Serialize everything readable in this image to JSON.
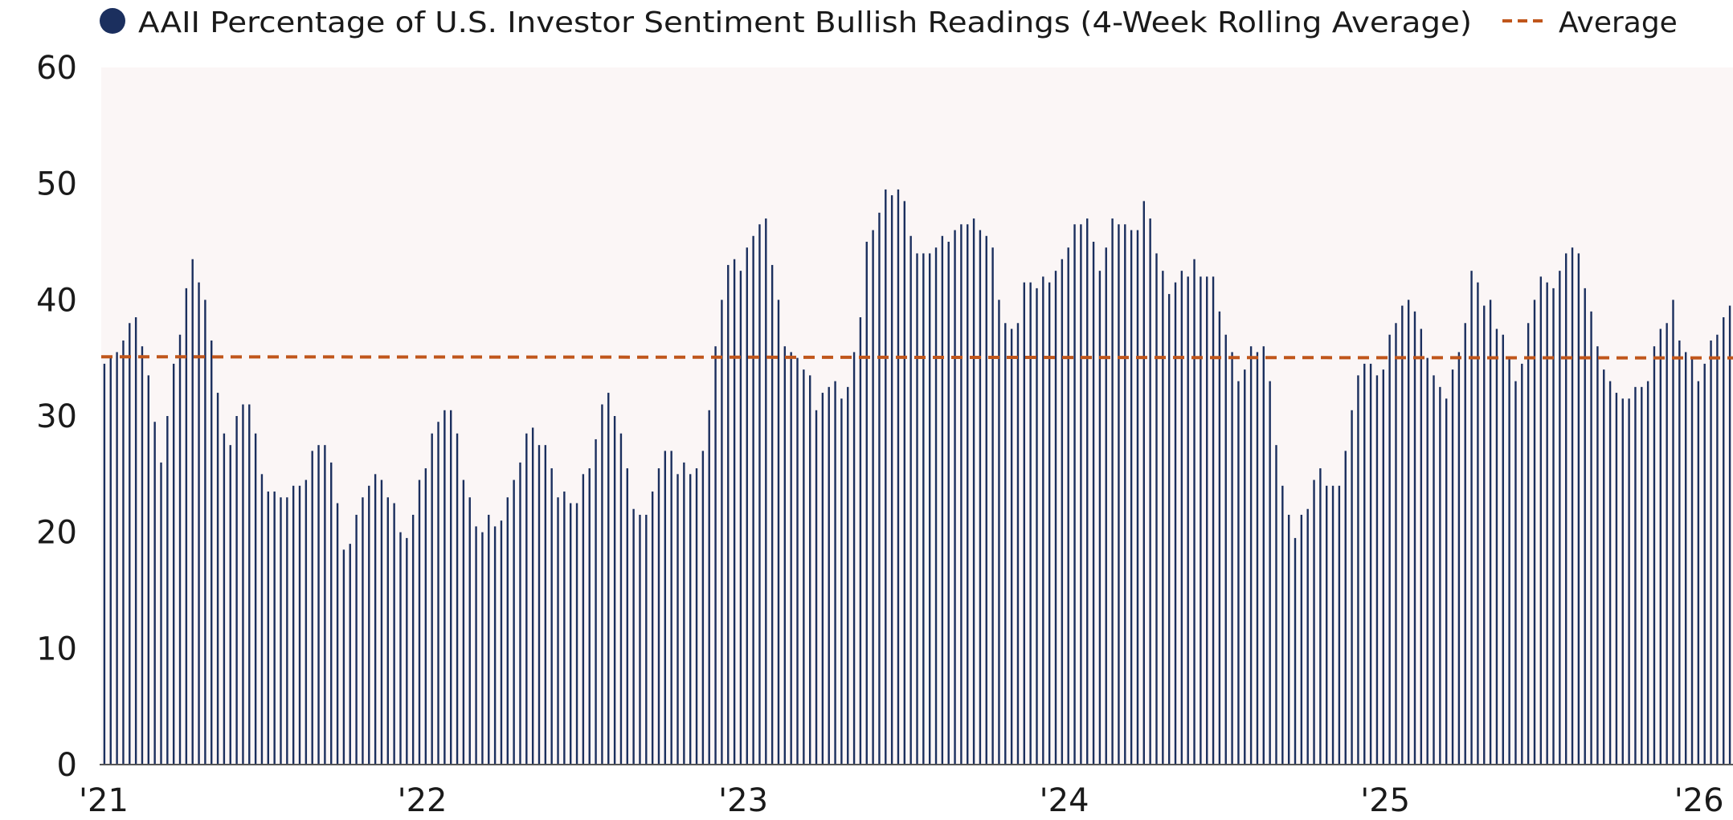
{
  "chart_data": {
    "type": "bar",
    "title": "",
    "xlabel": "",
    "ylabel": "",
    "ylim": [
      0,
      60
    ],
    "xlim": [
      "2021-01",
      "2026-02"
    ],
    "grid": false,
    "legend_position": "top",
    "y_ticks": [
      "0",
      "10",
      "20",
      "30",
      "40",
      "50",
      "60"
    ],
    "x_ticks": [
      {
        "label": "'21",
        "date": "2021-01"
      },
      {
        "label": "'22",
        "date": "2022-01"
      },
      {
        "label": "'23",
        "date": "2023-01"
      },
      {
        "label": "'24",
        "date": "2024-01"
      },
      {
        "label": "'25",
        "date": "2025-01"
      },
      {
        "label": "'26",
        "date": "2026-01"
      }
    ],
    "series": [
      {
        "name": "AAII Percentage of U.S. Investor Sentiment Bullish Readings (4-Week Rolling Average)",
        "kind": "bar",
        "color": "#1b2f5e",
        "start": "2021-01",
        "end": "2026-02",
        "values": [
          34.5,
          35.0,
          35.5,
          36.5,
          38.0,
          38.5,
          36.0,
          33.5,
          29.5,
          26.0,
          30.0,
          34.5,
          37.0,
          41.0,
          43.5,
          41.5,
          40.0,
          36.5,
          32.0,
          28.5,
          27.5,
          30.0,
          31.0,
          31.0,
          28.5,
          25.0,
          23.5,
          23.5,
          23.0,
          23.0,
          24.0,
          24.0,
          24.5,
          27.0,
          27.5,
          27.5,
          26.0,
          22.5,
          18.5,
          19.0,
          21.5,
          23.0,
          24.0,
          25.0,
          24.5,
          23.0,
          22.5,
          20.0,
          19.5,
          21.5,
          24.5,
          25.5,
          28.5,
          29.5,
          30.5,
          30.5,
          28.5,
          24.5,
          23.0,
          20.5,
          20.0,
          21.5,
          20.5,
          21.0,
          23.0,
          24.5,
          26.0,
          28.5,
          29.0,
          27.5,
          27.5,
          25.5,
          23.0,
          23.5,
          22.5,
          22.5,
          25.0,
          25.5,
          28.0,
          31.0,
          32.0,
          30.0,
          28.5,
          25.5,
          22.0,
          21.5,
          21.5,
          23.5,
          25.5,
          27.0,
          27.0,
          25.0,
          26.0,
          25.0,
          25.5,
          27.0,
          30.5,
          36.0,
          40.0,
          43.0,
          43.5,
          42.5,
          44.5,
          45.5,
          46.5,
          47.0,
          43.0,
          40.0,
          36.0,
          35.5,
          35.0,
          34.0,
          33.5,
          30.5,
          32.0,
          32.5,
          33.0,
          31.5,
          32.5,
          35.5,
          38.5,
          45.0,
          46.0,
          47.5,
          49.5,
          49.0,
          49.5,
          48.5,
          45.5,
          44.0,
          44.0,
          44.0,
          44.5,
          45.5,
          45.0,
          46.0,
          46.5,
          46.5,
          47.0,
          46.0,
          45.5,
          44.5,
          40.0,
          38.0,
          37.5,
          38.0,
          41.5,
          41.5,
          41.0,
          42.0,
          41.5,
          42.5,
          43.5,
          44.5,
          46.5,
          46.5,
          47.0,
          45.0,
          42.5,
          44.5,
          47.0,
          46.5,
          46.5,
          46.0,
          46.0,
          48.5,
          47.0,
          44.0,
          42.5,
          40.5,
          41.5,
          42.5,
          42.0,
          43.5,
          42.0,
          42.0,
          42.0,
          39.0,
          37.0,
          35.5,
          33.0,
          34.0,
          36.0,
          35.5,
          36.0,
          33.0,
          27.5,
          24.0,
          21.5,
          19.5,
          21.5,
          22.0,
          24.5,
          25.5,
          24.0,
          24.0,
          24.0,
          27.0,
          30.5,
          33.5,
          34.5,
          34.5,
          33.5,
          34.0,
          37.0,
          38.0,
          39.5,
          40.0,
          39.0,
          37.5,
          35.0,
          33.5,
          32.5,
          31.5,
          34.0,
          35.5,
          38.0,
          42.5,
          41.5,
          39.5,
          40.0,
          37.5,
          37.0,
          35.0,
          33.0,
          34.5,
          38.0,
          40.0,
          42.0,
          41.5,
          41.0,
          42.5,
          44.0,
          44.5,
          44.0,
          41.0,
          39.0,
          36.0,
          34.0,
          33.0,
          32.0,
          31.5,
          31.5,
          32.5,
          32.5,
          33.0,
          36.0,
          37.5,
          38.0,
          40.0,
          36.5,
          35.5,
          35.0,
          33.0,
          34.5,
          36.5,
          37.0,
          38.5,
          39.5
        ]
      },
      {
        "name": "Average",
        "kind": "dashed-line",
        "color": "#c0561b",
        "values": [
          35.1,
          35.0
        ]
      }
    ]
  }
}
